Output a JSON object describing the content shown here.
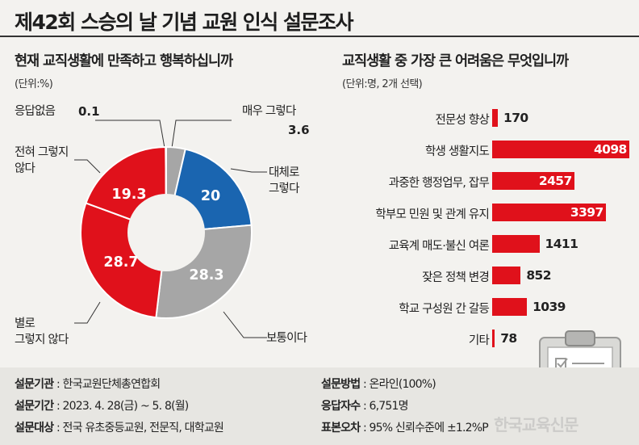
{
  "page_title": "제42회 스승의 날 기념 교원 인식 설문조사",
  "colors": {
    "red": "#e0111b",
    "blue": "#1a65b0",
    "gray": "#a6a6a6",
    "light_gray": "#c9c9c9"
  },
  "chart_data": [
    {
      "type": "pie",
      "title": "현재 교직생활에 만족하고 행복하십니까",
      "unit": "(단위:%)",
      "slices": [
        {
          "label": "매우 그렇다",
          "value": 3.6,
          "color": "#a6a6a6"
        },
        {
          "label": "대체로 그렇다",
          "value": 20,
          "color": "#1a65b0"
        },
        {
          "label": "보통이다",
          "value": 28.3,
          "color": "#a6a6a6"
        },
        {
          "label": "별로 그렇지 않다",
          "value": 28.7,
          "color": "#e0111b"
        },
        {
          "label": "전혀 그렇지 않다",
          "value": 19.3,
          "color": "#e0111b"
        },
        {
          "label": "응답없음",
          "value": 0.1,
          "color": "#c9c9c9"
        }
      ]
    },
    {
      "type": "bar",
      "orientation": "horizontal",
      "title": "교직생활 중 가장 큰 어려움은 무엇입니까",
      "unit": "(단위:명, 2개 선택)",
      "categories": [
        "전문성 향상",
        "학생 생활지도",
        "과중한 행정업무, 잡무",
        "학부모 민원 및 관계 유지",
        "교육계 매도·불신 여론",
        "잦은 정책 변경",
        "학교 구성원 간 갈등",
        "기타"
      ],
      "values": [
        170,
        4098,
        2457,
        3397,
        1411,
        852,
        1039,
        78
      ],
      "xlim": [
        0,
        4098
      ],
      "color": "#e0111b"
    }
  ],
  "pie_labels": {
    "no_answer": {
      "label": "응답없음",
      "value": "0.1"
    },
    "very_yes": {
      "label": "매우 그렇다",
      "value": "3.6"
    },
    "mostly_yes": {
      "line1": "대체로",
      "line2": "그렇다"
    },
    "normal": {
      "label": "보통이다"
    },
    "not_really": {
      "line1": "별로",
      "line2": "그렇지 않다"
    },
    "not_at_all": {
      "line1": "전혀 그렇지",
      "line2": "않다"
    },
    "slice_values": {
      "mostly_yes": "20",
      "normal": "28.3",
      "not_really": "28.7",
      "not_at_all": "19.3"
    }
  },
  "bar_value_labels": [
    "170",
    "4098",
    "2457",
    "3397",
    "1411",
    "852",
    "1039",
    "78"
  ],
  "footer": {
    "left": [
      {
        "key": "설문기관",
        "value": " : 한국교원단체총연합회"
      },
      {
        "key": "설문기간",
        "value": " : 2023. 4. 28(금) ~ 5. 8(월)"
      },
      {
        "key": "설문대상",
        "value": " : 전국 유초중등교원, 전문직, 대학교원"
      }
    ],
    "right": [
      {
        "key": "설문방법",
        "value": " : 온라인(100%)"
      },
      {
        "key": "응답자수",
        "value": " : 6,751명"
      },
      {
        "key": "표본오차",
        "value": " : 95% 신뢰수준에 ±1.2%P"
      }
    ]
  },
  "watermark": "한국교육신문",
  "icons": [
    "clipboard-checklist-icon"
  ]
}
